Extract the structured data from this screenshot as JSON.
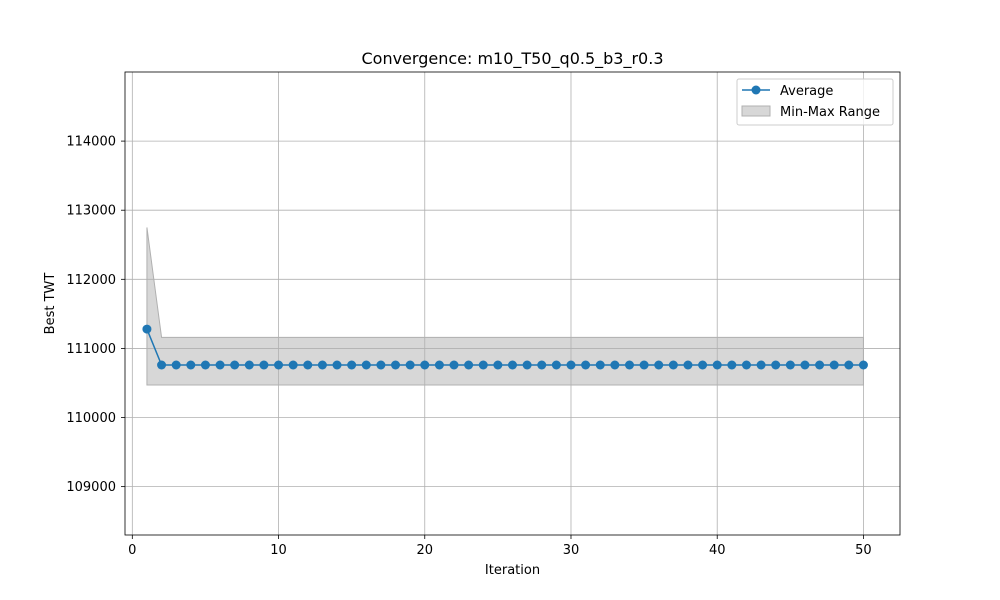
{
  "chart_data": {
    "type": "line",
    "title": "Convergence: m10_T50_q0.5_b3_r0.3",
    "xlabel": "Iteration",
    "ylabel": "Best TWT",
    "xlim": [
      -0.5,
      52.5
    ],
    "ylim": [
      108300,
      115000
    ],
    "x_ticks": [
      0,
      10,
      20,
      30,
      40,
      50
    ],
    "y_ticks": [
      109000,
      110000,
      111000,
      112000,
      113000,
      114000
    ],
    "grid": true,
    "legend_position": "top-right",
    "x": [
      1,
      2,
      3,
      4,
      5,
      6,
      7,
      8,
      9,
      10,
      11,
      12,
      13,
      14,
      15,
      16,
      17,
      18,
      19,
      20,
      21,
      22,
      23,
      24,
      25,
      26,
      27,
      28,
      29,
      30,
      31,
      32,
      33,
      34,
      35,
      36,
      37,
      38,
      39,
      40,
      41,
      42,
      43,
      44,
      45,
      46,
      47,
      48,
      49,
      50
    ],
    "series": [
      {
        "name": "Average",
        "color": "#1f77b4",
        "values": [
          111280,
          110760,
          110760,
          110760,
          110760,
          110760,
          110760,
          110760,
          110760,
          110760,
          110760,
          110760,
          110760,
          110760,
          110760,
          110760,
          110760,
          110760,
          110760,
          110760,
          110760,
          110760,
          110760,
          110760,
          110760,
          110760,
          110760,
          110760,
          110760,
          110760,
          110760,
          110760,
          110760,
          110760,
          110760,
          110760,
          110760,
          110760,
          110760,
          110760,
          110760,
          110760,
          110760,
          110760,
          110760,
          110760,
          110760,
          110760,
          110760,
          110760
        ]
      }
    ],
    "band": {
      "name": "Min-Max Range",
      "color": "#b0b0b0",
      "min": [
        110470,
        110470,
        110470,
        110470,
        110470,
        110470,
        110470,
        110470,
        110470,
        110470,
        110470,
        110470,
        110470,
        110470,
        110470,
        110470,
        110470,
        110470,
        110470,
        110470,
        110470,
        110470,
        110470,
        110470,
        110470,
        110470,
        110470,
        110470,
        110470,
        110470,
        110470,
        110470,
        110470,
        110470,
        110470,
        110470,
        110470,
        110470,
        110470,
        110470,
        110470,
        110470,
        110470,
        110470,
        110470,
        110470,
        110470,
        110470,
        110470,
        110470
      ],
      "max": [
        112750,
        111160,
        111160,
        111160,
        111160,
        111160,
        111160,
        111160,
        111160,
        111160,
        111160,
        111160,
        111160,
        111160,
        111160,
        111160,
        111160,
        111160,
        111160,
        111160,
        111160,
        111160,
        111160,
        111160,
        111160,
        111160,
        111160,
        111160,
        111160,
        111160,
        111160,
        111160,
        111160,
        111160,
        111160,
        111160,
        111160,
        111160,
        111160,
        111160,
        111160,
        111160,
        111160,
        111160,
        111160,
        111160,
        111160,
        111160,
        111160,
        111160
      ]
    }
  }
}
